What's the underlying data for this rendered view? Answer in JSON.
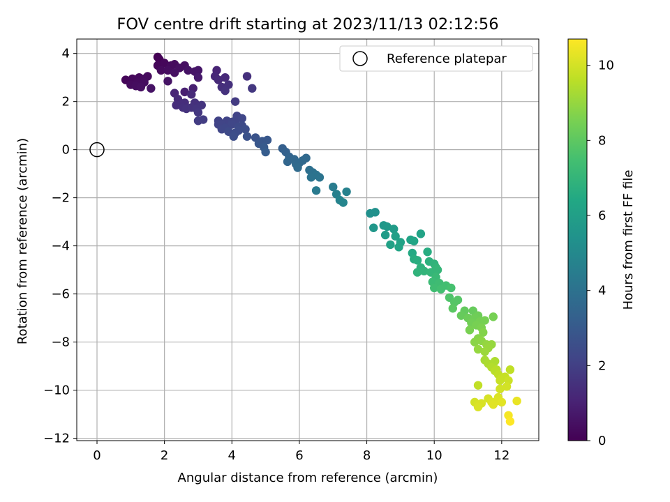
{
  "chart_data": {
    "type": "scatter",
    "title": "FOV centre drift starting at 2023/11/13 02:12:56",
    "xlabel": "Angular distance from reference (arcmin)",
    "ylabel": "Rotation from reference (arcmin)",
    "xlim": [
      -0.6,
      13.1
    ],
    "ylim": [
      -12.1,
      4.6
    ],
    "xticks": [
      0,
      2,
      4,
      6,
      8,
      10,
      12
    ],
    "yticks": [
      -12,
      -10,
      -8,
      -6,
      -4,
      -2,
      0,
      2,
      4
    ],
    "grid": true,
    "legend": {
      "position": "upper right",
      "entries": [
        "Reference platepar"
      ]
    },
    "reference_point": {
      "x": 0,
      "y": 0,
      "label": "Reference platepar"
    },
    "colorbar": {
      "label": "Hours from first FF file",
      "range": [
        0,
        10.7
      ],
      "ticks": [
        0,
        2,
        4,
        6,
        8,
        10
      ],
      "colormap": "viridis"
    },
    "series": [
      {
        "points": [
          [
            4.1,
            2.0
          ],
          [
            4.6,
            2.55
          ],
          [
            4.45,
            3.05
          ],
          [
            3.8,
            3.0
          ],
          [
            3.9,
            2.7
          ],
          [
            3.8,
            2.45
          ],
          [
            3.6,
            2.9
          ],
          [
            3.5,
            3.05
          ],
          [
            3.55,
            3.3
          ],
          [
            3.7,
            2.6
          ],
          [
            3.0,
            3.3
          ],
          [
            2.7,
            3.3
          ],
          [
            2.9,
            3.25
          ],
          [
            3.0,
            3.0
          ],
          [
            2.6,
            3.5
          ],
          [
            2.45,
            3.4
          ],
          [
            2.3,
            3.55
          ],
          [
            2.2,
            3.5
          ],
          [
            2.0,
            3.6
          ],
          [
            1.9,
            3.3
          ],
          [
            1.8,
            3.5
          ],
          [
            1.8,
            3.85
          ],
          [
            1.85,
            3.75
          ],
          [
            2.1,
            3.3
          ],
          [
            2.3,
            3.2
          ],
          [
            2.1,
            2.85
          ],
          [
            2.6,
            2.4
          ],
          [
            2.8,
            2.3
          ],
          [
            1.5,
            3.05
          ],
          [
            1.4,
            2.95
          ],
          [
            1.3,
            2.6
          ],
          [
            1.2,
            2.8
          ],
          [
            1.1,
            2.9
          ],
          [
            1.0,
            2.7
          ],
          [
            0.85,
            2.9
          ],
          [
            1.25,
            3.0
          ],
          [
            1.6,
            2.55
          ],
          [
            1.4,
            2.8
          ],
          [
            1.15,
            2.65
          ],
          [
            1.05,
            2.95
          ],
          [
            2.85,
            2.55
          ],
          [
            2.3,
            2.35
          ],
          [
            2.4,
            2.1
          ],
          [
            2.5,
            1.9
          ],
          [
            2.6,
            1.95
          ],
          [
            2.8,
            1.75
          ],
          [
            2.65,
            1.7
          ],
          [
            2.35,
            1.85
          ],
          [
            2.55,
            1.75
          ],
          [
            2.9,
            1.95
          ],
          [
            3.1,
            1.85
          ],
          [
            3.0,
            1.55
          ],
          [
            3.15,
            1.25
          ],
          [
            3.0,
            1.2
          ],
          [
            2.95,
            1.7
          ],
          [
            3.6,
            1.2
          ],
          [
            3.7,
            1.05
          ],
          [
            3.8,
            0.9
          ],
          [
            3.9,
            0.75
          ],
          [
            3.7,
            0.85
          ],
          [
            4.0,
            1.15
          ],
          [
            4.1,
            1.2
          ],
          [
            4.2,
            0.95
          ],
          [
            4.1,
            0.7
          ],
          [
            4.2,
            0.8
          ],
          [
            4.3,
            1.0
          ],
          [
            4.4,
            0.85
          ],
          [
            4.05,
            0.55
          ],
          [
            4.0,
            1.05
          ],
          [
            4.15,
            1.4
          ],
          [
            4.3,
            1.3
          ],
          [
            4.45,
            0.55
          ],
          [
            3.85,
            1.2
          ],
          [
            3.6,
            1.05
          ],
          [
            4.7,
            0.5
          ],
          [
            4.8,
            0.25
          ],
          [
            4.9,
            0.35
          ],
          [
            5.05,
            0.4
          ],
          [
            4.95,
            0.1
          ],
          [
            5.0,
            -0.1
          ],
          [
            5.5,
            0.05
          ],
          [
            5.6,
            -0.1
          ],
          [
            5.7,
            -0.3
          ],
          [
            5.65,
            -0.5
          ],
          [
            5.85,
            -0.4
          ],
          [
            5.9,
            -0.6
          ],
          [
            6.0,
            -0.55
          ],
          [
            5.95,
            -0.75
          ],
          [
            6.1,
            -0.45
          ],
          [
            6.2,
            -0.35
          ],
          [
            6.3,
            -0.85
          ],
          [
            6.5,
            -1.05
          ],
          [
            6.4,
            -0.95
          ],
          [
            6.6,
            -1.15
          ],
          [
            6.35,
            -1.15
          ],
          [
            6.5,
            -1.7
          ],
          [
            7.0,
            -1.55
          ],
          [
            7.1,
            -1.85
          ],
          [
            7.2,
            -2.1
          ],
          [
            7.3,
            -2.2
          ],
          [
            7.4,
            -1.75
          ],
          [
            8.1,
            -2.65
          ],
          [
            8.25,
            -2.6
          ],
          [
            8.2,
            -3.25
          ],
          [
            8.5,
            -3.15
          ],
          [
            8.6,
            -3.2
          ],
          [
            8.55,
            -3.55
          ],
          [
            8.8,
            -3.3
          ],
          [
            8.85,
            -3.6
          ],
          [
            8.7,
            -3.95
          ],
          [
            9.0,
            -3.85
          ],
          [
            8.95,
            -4.05
          ],
          [
            9.3,
            -3.75
          ],
          [
            9.4,
            -3.8
          ],
          [
            9.6,
            -3.5
          ],
          [
            9.35,
            -4.3
          ],
          [
            9.5,
            -4.6
          ],
          [
            9.4,
            -4.55
          ],
          [
            9.6,
            -4.9
          ],
          [
            9.5,
            -5.1
          ],
          [
            9.7,
            -5.05
          ],
          [
            9.8,
            -4.25
          ],
          [
            9.85,
            -4.65
          ],
          [
            10.0,
            -4.75
          ],
          [
            10.05,
            -4.9
          ],
          [
            9.9,
            -5.1
          ],
          [
            10.1,
            -5.0
          ],
          [
            10.05,
            -5.3
          ],
          [
            9.95,
            -5.5
          ],
          [
            10.15,
            -5.55
          ],
          [
            10.0,
            -5.75
          ],
          [
            10.2,
            -5.8
          ],
          [
            10.35,
            -5.65
          ],
          [
            10.5,
            -5.75
          ],
          [
            10.45,
            -6.15
          ],
          [
            10.6,
            -6.35
          ],
          [
            10.7,
            -6.25
          ],
          [
            10.55,
            -6.6
          ],
          [
            10.8,
            -6.9
          ],
          [
            10.9,
            -6.7
          ],
          [
            11.0,
            -7.0
          ],
          [
            11.1,
            -7.2
          ],
          [
            11.05,
            -7.5
          ],
          [
            11.15,
            -6.7
          ],
          [
            11.2,
            -7.0
          ],
          [
            11.3,
            -6.9
          ],
          [
            11.25,
            -7.3
          ],
          [
            11.35,
            -7.15
          ],
          [
            11.4,
            -7.4
          ],
          [
            11.5,
            -7.1
          ],
          [
            11.45,
            -7.6
          ],
          [
            11.3,
            -7.85
          ],
          [
            11.2,
            -8.0
          ],
          [
            11.4,
            -7.95
          ],
          [
            11.55,
            -8.1
          ],
          [
            11.5,
            -8.4
          ],
          [
            11.3,
            -8.3
          ],
          [
            11.6,
            -8.25
          ],
          [
            11.7,
            -8.1
          ],
          [
            11.75,
            -6.95
          ],
          [
            11.5,
            -8.75
          ],
          [
            11.6,
            -8.9
          ],
          [
            11.8,
            -8.8
          ],
          [
            11.7,
            -9.05
          ],
          [
            11.85,
            -9.15
          ],
          [
            11.9,
            -9.35
          ],
          [
            11.95,
            -9.6
          ],
          [
            12.0,
            -9.5
          ],
          [
            12.1,
            -9.45
          ],
          [
            12.2,
            -9.6
          ],
          [
            12.25,
            -9.15
          ],
          [
            12.15,
            -9.85
          ],
          [
            11.95,
            -9.95
          ],
          [
            11.8,
            -9.2
          ],
          [
            11.3,
            -9.8
          ],
          [
            11.2,
            -10.5
          ],
          [
            11.3,
            -10.6
          ],
          [
            11.4,
            -10.55
          ],
          [
            11.6,
            -10.35
          ],
          [
            11.7,
            -10.5
          ],
          [
            11.75,
            -10.6
          ],
          [
            11.85,
            -10.45
          ],
          [
            11.9,
            -10.3
          ],
          [
            12.0,
            -10.5
          ],
          [
            12.2,
            -11.05
          ],
          [
            12.25,
            -11.3
          ],
          [
            12.45,
            -10.45
          ],
          [
            11.3,
            -10.7
          ]
        ]
      }
    ]
  }
}
